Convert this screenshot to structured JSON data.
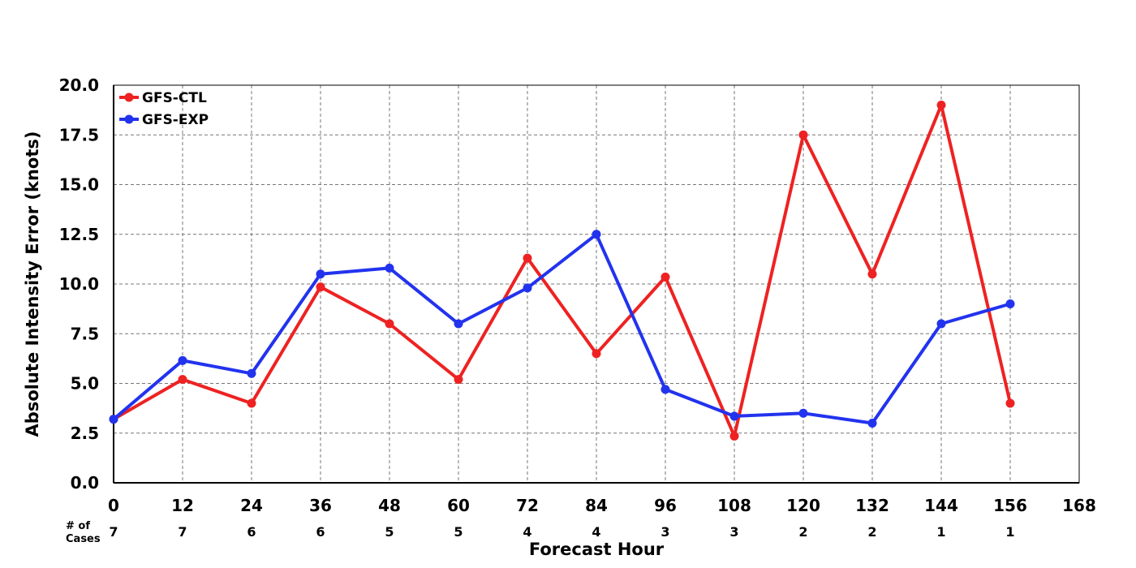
{
  "chart_data": {
    "type": "line",
    "title": "",
    "xlabel": "Forecast Hour",
    "ylabel": "Absolute Intensity Error (knots)",
    "xlim": [
      0,
      168
    ],
    "ylim": [
      0,
      20
    ],
    "grid": true,
    "legend_position": "top-left",
    "x_ticks": [
      "0",
      "12",
      "24",
      "36",
      "48",
      "60",
      "72",
      "84",
      "96",
      "108",
      "120",
      "132",
      "144",
      "156",
      "168"
    ],
    "y_ticks": [
      "0.0",
      "2.5",
      "5.0",
      "7.5",
      "10.0",
      "12.5",
      "15.0",
      "17.5",
      "20.0"
    ],
    "x": [
      0,
      12,
      24,
      36,
      48,
      60,
      72,
      84,
      96,
      108,
      120,
      132,
      144,
      156
    ],
    "cases_label_line1": "# of",
    "cases_label_line2": "Cases",
    "cases": [
      "7",
      "7",
      "6",
      "6",
      "5",
      "5",
      "4",
      "4",
      "3",
      "3",
      "2",
      "2",
      "1",
      "1"
    ],
    "series": [
      {
        "name": "GFS-CTL",
        "color": "#ee2222",
        "values": [
          3.2,
          5.2,
          4.0,
          9.85,
          8.0,
          5.2,
          11.3,
          6.5,
          10.35,
          2.35,
          17.5,
          10.5,
          19.0,
          4.0
        ]
      },
      {
        "name": "GFS-EXP",
        "color": "#2233ee",
        "values": [
          3.2,
          6.15,
          5.5,
          10.5,
          10.8,
          8.0,
          9.8,
          12.5,
          4.7,
          3.35,
          3.5,
          3.0,
          8.0,
          9.0
        ]
      }
    ]
  }
}
